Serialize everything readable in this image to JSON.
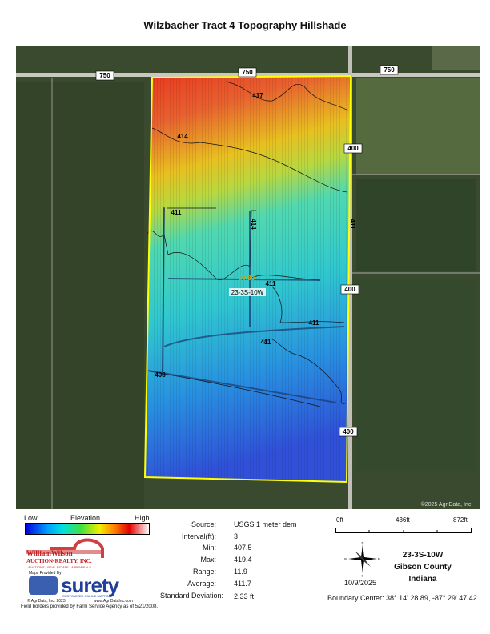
{
  "title": "Wilzbacher Tract 4 Topography Hillshade",
  "map": {
    "road_labels": [
      "750",
      "750",
      "750",
      "400",
      "400",
      "400"
    ],
    "contour_labels": [
      "417",
      "414",
      "411",
      "411",
      "411",
      "411",
      "408",
      "414",
      "411"
    ],
    "center_label": "80.80",
    "section_label": "23-3S-10W",
    "copyright": "©2025 AgriData, Inc.",
    "boundary_color": "#ffff00"
  },
  "legend": {
    "low": "Low",
    "title": "Elevation",
    "high": "High",
    "colors": [
      "#0000e0",
      "#00a0ff",
      "#00e0e0",
      "#40e040",
      "#f0f000",
      "#ff8000",
      "#e00000",
      "#ffffff"
    ]
  },
  "stats": [
    {
      "label": "Source:",
      "value": "USGS 1 meter dem"
    },
    {
      "label": "Interval(ft):",
      "value": "3"
    },
    {
      "label": "Min:",
      "value": "407.5"
    },
    {
      "label": "Max:",
      "value": "419.4"
    },
    {
      "label": "Range:",
      "value": "11.9"
    },
    {
      "label": "Average:",
      "value": "411.7"
    },
    {
      "label": "Standard Deviation:",
      "value": "2.33 ft"
    }
  ],
  "scale": {
    "ticks": [
      "0ft",
      "436ft",
      "872ft"
    ]
  },
  "compass": {
    "n": "N",
    "s": "S",
    "e": "E",
    "w": "W"
  },
  "date": "10/9/2025",
  "location": {
    "section": "23-3S-10W",
    "county": "Gibson County",
    "state": "Indiana"
  },
  "boundary_center": "Boundary Center: 38° 14' 28.89,  -87° 29' 47.42",
  "branding": {
    "company": "WilliamWilson",
    "company2": "AUCTION•REALTY, INC.",
    "tagline": "AUCTIONS • REAL ESTATE • APPRAISALS",
    "maps_by": "Maps Provided By",
    "logo": "surety",
    "logo_tag": "CUSTOMIZED ONLINE MAPPING",
    "copyright": "© AgriData, Inc. 2023",
    "url": "www.AgriDataInc.com"
  },
  "footer": "Field borders provided by Farm Service Agency as of 5/21/2008."
}
